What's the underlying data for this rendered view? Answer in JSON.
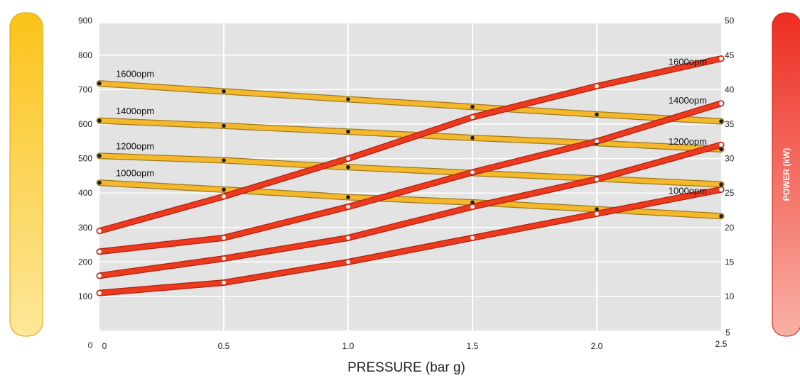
{
  "chart_data": {
    "type": "line",
    "xlabel": "PRESSURE (bar g)",
    "ylabel_left": "",
    "ylabel_right": "POWER (kW)",
    "xlim": [
      0,
      2.5
    ],
    "ylim_left": [
      0,
      900
    ],
    "ylim_right": [
      5,
      50
    ],
    "grid": true,
    "x_ticks": [
      {
        "value": 0,
        "label": "0"
      },
      {
        "value": 0.5,
        "label": "0.5"
      },
      {
        "value": 1.0,
        "label": "1.0"
      },
      {
        "value": 1.5,
        "label": "1.5"
      },
      {
        "value": 2.0,
        "label": "2.0"
      },
      {
        "value": 2.5,
        "label": "2.5"
      }
    ],
    "y_left_ticks": [
      "100",
      "200",
      "300",
      "400",
      "500",
      "600",
      "700",
      "800",
      "900"
    ],
    "y_left_zero_label": "0",
    "y_right_ticks": [
      "10",
      "15",
      "20",
      "25",
      "30",
      "35",
      "40",
      "45",
      "50"
    ],
    "y_right_bottom_label": "5",
    "x": [
      0,
      0.5,
      1.0,
      1.5,
      2.0,
      2.5
    ],
    "flow_series": [
      {
        "name": "1600opm",
        "axis": "left",
        "values": [
          718,
          695,
          672,
          650,
          628,
          608
        ]
      },
      {
        "name": "1400opm",
        "axis": "left",
        "values": [
          610,
          595,
          578,
          560,
          545,
          527
        ]
      },
      {
        "name": "1200opm",
        "axis": "left",
        "values": [
          508,
          495,
          475,
          458,
          442,
          425
        ]
      },
      {
        "name": "1000opm",
        "axis": "left",
        "values": [
          430,
          410,
          388,
          373,
          353,
          333
        ]
      }
    ],
    "power_series": [
      {
        "name": "1600opm",
        "axis": "right",
        "values": [
          19.5,
          24.5,
          30,
          36,
          40.5,
          44.5
        ]
      },
      {
        "name": "1400opm",
        "axis": "right",
        "values": [
          16.5,
          18.5,
          23,
          28,
          32.5,
          38
        ]
      },
      {
        "name": "1200opm",
        "axis": "right",
        "values": [
          13,
          15.5,
          18.5,
          23,
          27,
          32
        ]
      },
      {
        "name": "1000opm",
        "axis": "right",
        "values": [
          10.5,
          12,
          15,
          18.5,
          22,
          25.5
        ]
      }
    ],
    "colors": {
      "flow_line": "#f5b82a",
      "flow_edge": "#9a7a22",
      "power_line": "#ec3a1f",
      "plot_bg": "#e3e3e3",
      "grid": "#ffffff",
      "left_bar_top": "#fbc319",
      "left_bar_bottom": "#fde79a",
      "right_bar_top": "#ee2d22",
      "right_bar_bottom": "#f8b0a6"
    }
  }
}
